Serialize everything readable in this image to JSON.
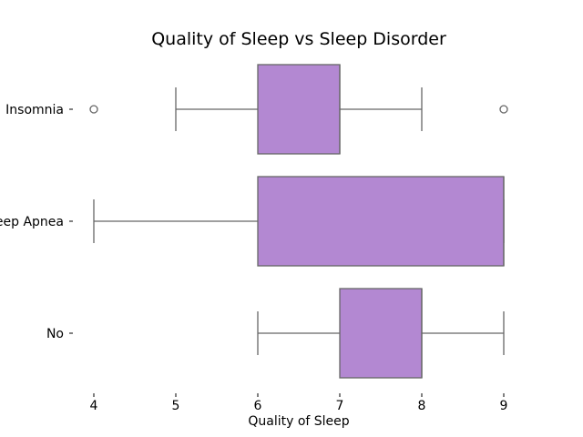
{
  "chart_data": {
    "type": "boxplot",
    "orientation": "horizontal",
    "title": "Quality of Sleep vs Sleep Disorder",
    "xlabel": "Quality of Sleep",
    "ylabel": "",
    "xlim": [
      4,
      9
    ],
    "xticks": [
      4,
      5,
      6,
      7,
      8,
      9
    ],
    "grid": false,
    "box_color": "#b388d2",
    "line_color": "#666666",
    "categories": [
      {
        "label": "Insomnia",
        "min": 5,
        "q1": 6,
        "median": 7,
        "q3": 7,
        "max": 8,
        "outliers": [
          4,
          9
        ]
      },
      {
        "label": "Sleep Apnea",
        "min": 4,
        "q1": 6,
        "median": 9,
        "q3": 9,
        "max": 9,
        "outliers": []
      },
      {
        "label": "No",
        "min": 6,
        "q1": 7,
        "median": 8,
        "q3": 8,
        "max": 9,
        "outliers": []
      }
    ]
  }
}
